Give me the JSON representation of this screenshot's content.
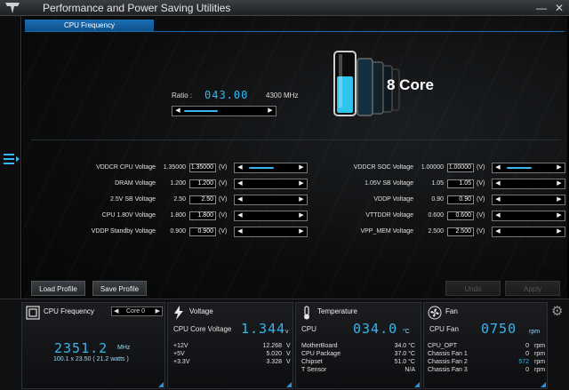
{
  "window": {
    "title": "Performance and Power Saving Utilities",
    "minimize": "—",
    "close": "✕"
  },
  "tab": {
    "label": "CPU Frequency"
  },
  "ratio": {
    "label": "Ratio :",
    "value": "043.00",
    "mhz": "4300 MHz",
    "slider_level": 0.7
  },
  "cores": {
    "label": "8 Core"
  },
  "voltages_left": [
    {
      "label": "VDDCR CPU Voltage",
      "value": "1.35000",
      "input": "1.35000",
      "unit": "(V)",
      "slider": true
    },
    {
      "label": "DRAM Voltage",
      "value": "1.200",
      "input": "1.200",
      "unit": "(V)",
      "slider": false
    },
    {
      "label": "2.5V SB Voltage",
      "value": "2.50",
      "input": "2.50",
      "unit": "(V)",
      "slider": false
    },
    {
      "label": "CPU 1.80V Voltage",
      "value": "1.800",
      "input": "1.800",
      "unit": "(V)",
      "slider": false
    },
    {
      "label": "VDDP Standby Voltage",
      "value": "0.900",
      "input": "0.900",
      "unit": "(V)",
      "slider": false
    }
  ],
  "voltages_right": [
    {
      "label": "VDDCR SOC Voltage",
      "value": "1.00000",
      "input": "1.00000",
      "unit": "(V)",
      "slider": true
    },
    {
      "label": "1.05V SB Voltage",
      "value": "1.05",
      "input": "1.05",
      "unit": "(V)",
      "slider": false
    },
    {
      "label": "VDDP Voltage",
      "value": "0.90",
      "input": "0.90",
      "unit": "(V)",
      "slider": false
    },
    {
      "label": "VTTDDR Voltage",
      "value": "0.600",
      "input": "0.600",
      "unit": "(V)",
      "slider": false
    },
    {
      "label": "VPP_MEM Voltage",
      "value": "2.500",
      "input": "2.500",
      "unit": "(V)",
      "slider": false
    }
  ],
  "buttons": {
    "load": "Load Profile",
    "save": "Save Profile",
    "undo": "Undo",
    "apply": "Apply"
  },
  "cpu_panel": {
    "title": "CPU Frequency",
    "core": "Core 0",
    "freq": "2351.2",
    "freq_unit": "MHz",
    "detail": "100.1  x  23.50 ( 21.2   watts )"
  },
  "voltage_panel": {
    "title": "Voltage",
    "core_label": "CPU Core Voltage",
    "core_value": "1.344",
    "core_unit": "v",
    "rows": [
      {
        "label": "+12V",
        "value": "12.268",
        "unit": "V"
      },
      {
        "label": "+5V",
        "value": "5.020",
        "unit": "V"
      },
      {
        "label": "+3.3V",
        "value": "3.328",
        "unit": "V"
      }
    ]
  },
  "temp_panel": {
    "title": "Temperature",
    "cpu_label": "CPU",
    "cpu_value": "034.0",
    "cpu_unit": "°C",
    "rows": [
      {
        "label": "MotherBoard",
        "value": "34.0 °C"
      },
      {
        "label": "CPU Package",
        "value": "37.0 °C"
      },
      {
        "label": "Chipset",
        "value": "51.0 °C"
      },
      {
        "label": "T Sensor",
        "value": "N/A"
      }
    ]
  },
  "fan_panel": {
    "title": "Fan",
    "cpu_label": "CPU Fan",
    "cpu_value": "0750",
    "cpu_unit": "rpm",
    "rows": [
      {
        "label": "CPU_OPT",
        "value": "0",
        "unit": "rpm"
      },
      {
        "label": "Chassis Fan 1",
        "value": "0",
        "unit": "rpm"
      },
      {
        "label": "Chassis Fan 2",
        "value": "572",
        "unit": "rpm"
      },
      {
        "label": "Chassis Fan 3",
        "value": "0",
        "unit": "rpm"
      }
    ]
  },
  "icons": {
    "logo": "tuf-logo-icon",
    "menu": "menu-icon",
    "settings": "gear-icon",
    "cpu": "cpu-chip-icon",
    "voltage": "lightning-icon",
    "temperature": "thermometer-icon",
    "fan": "fan-icon"
  },
  "colors": {
    "accent": "#35b6f0",
    "tab": "#1c6fb5"
  }
}
